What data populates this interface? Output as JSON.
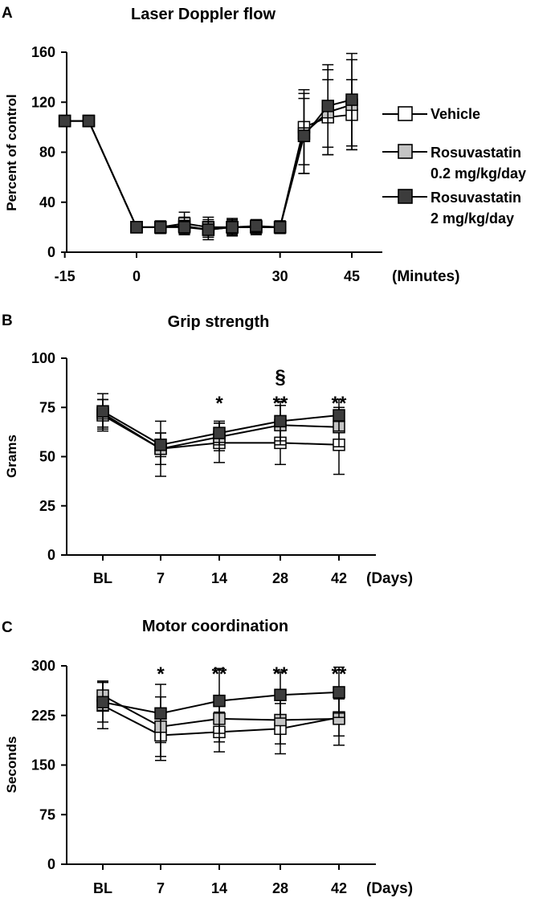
{
  "colors": {
    "vehicle": "#ffffff",
    "low_dose": "#c4c4c4",
    "high_dose": "#3c3c3c",
    "stroke": "#000000"
  },
  "legend": {
    "vehicle": "Vehicle",
    "low_dose_line1": "Rosuvastatin",
    "low_dose_line2": "0.2 mg/kg/day",
    "high_dose_line1": "Rosuvastatin",
    "high_dose_line2": "2 mg/kg/day"
  },
  "chart_data": [
    {
      "panel": "A",
      "type": "line",
      "title": "Laser Doppler flow",
      "ylabel": "Percent of control",
      "xunit": "(Minutes)",
      "ylim": [
        0,
        160
      ],
      "yticks": [
        0,
        40,
        80,
        120,
        160
      ],
      "xticks": [
        {
          "x": -15,
          "label": "-15"
        },
        {
          "x": 0,
          "label": "0"
        },
        {
          "x": 30,
          "label": "30"
        },
        {
          "x": 45,
          "label": "45"
        }
      ],
      "x": [
        -15,
        -10,
        0,
        5,
        10,
        15,
        20,
        25,
        30,
        35,
        40,
        45
      ],
      "series": [
        {
          "name": "Vehicle",
          "key": "vehicle",
          "values": [
            105,
            105,
            20,
            20,
            23,
            20,
            20,
            20,
            20,
            100,
            108,
            110
          ],
          "errors": [
            0,
            0,
            4,
            4,
            9,
            8,
            7,
            6,
            5,
            30,
            30,
            28
          ]
        },
        {
          "name": "Rosuvastatin 0.2 mg/kg/day",
          "key": "low_dose",
          "values": [
            105,
            105,
            20,
            20,
            21,
            18,
            20,
            20,
            20,
            95,
            112,
            118
          ],
          "errors": [
            0,
            0,
            4,
            5,
            7,
            8,
            6,
            5,
            5,
            32,
            34,
            36
          ]
        },
        {
          "name": "Rosuvastatin 2 mg/kg/day",
          "key": "high_dose",
          "values": [
            105,
            105,
            20,
            20,
            20,
            18,
            20,
            21,
            20,
            93,
            117,
            122
          ],
          "errors": [
            0,
            0,
            4,
            5,
            5,
            6,
            5,
            5,
            5,
            30,
            33,
            37
          ]
        }
      ],
      "annotations": []
    },
    {
      "panel": "B",
      "type": "line",
      "title": "Grip strength",
      "ylabel": "Grams",
      "xunit": "(Days)",
      "ylim": [
        0,
        100
      ],
      "yticks": [
        0,
        25,
        50,
        75,
        100
      ],
      "categories": [
        "BL",
        "7",
        "14",
        "28",
        "42"
      ],
      "series": [
        {
          "name": "Vehicle",
          "key": "vehicle",
          "values": [
            71,
            54,
            57,
            57,
            56
          ],
          "errors": [
            8,
            14,
            10,
            11,
            15
          ]
        },
        {
          "name": "Rosuvastatin 0.2 mg/kg/day",
          "key": "low_dose",
          "values": [
            72,
            54,
            60,
            66,
            65
          ],
          "errors": [
            7,
            8,
            7,
            10,
            10
          ]
        },
        {
          "name": "Rosuvastatin 2 mg/kg/day",
          "key": "high_dose",
          "values": [
            73,
            56,
            62,
            68,
            71
          ],
          "errors": [
            9,
            6,
            6,
            10,
            8
          ]
        }
      ],
      "annotations": [
        {
          "category": "14",
          "lines": [
            "*"
          ]
        },
        {
          "category": "28",
          "lines": [
            "§",
            "**"
          ]
        },
        {
          "category": "42",
          "lines": [
            "**"
          ]
        }
      ]
    },
    {
      "panel": "C",
      "type": "line",
      "title": "Motor coordination",
      "ylabel": "Seconds",
      "xunit": "(Days)",
      "ylim": [
        0,
        300
      ],
      "yticks": [
        0,
        75,
        150,
        225,
        300
      ],
      "categories": [
        "BL",
        "7",
        "14",
        "28",
        "42"
      ],
      "series": [
        {
          "name": "Vehicle",
          "key": "vehicle",
          "values": [
            240,
            195,
            200,
            205,
            222
          ],
          "errors": [
            35,
            38,
            30,
            38,
            28
          ]
        },
        {
          "name": "Rosuvastatin 0.2 mg/kg/day",
          "key": "low_dose",
          "values": [
            255,
            208,
            220,
            218,
            220
          ],
          "errors": [
            22,
            45,
            35,
            36,
            40
          ]
        },
        {
          "name": "Rosuvastatin 2 mg/kg/day",
          "key": "high_dose",
          "values": [
            245,
            228,
            247,
            256,
            260
          ],
          "errors": [
            30,
            44,
            49,
            35,
            38
          ]
        }
      ],
      "annotations": [
        {
          "category": "7",
          "lines": [
            "*"
          ]
        },
        {
          "category": "14",
          "lines": [
            "**"
          ]
        },
        {
          "category": "28",
          "lines": [
            "**"
          ]
        },
        {
          "category": "42",
          "lines": [
            "**"
          ]
        }
      ]
    }
  ]
}
